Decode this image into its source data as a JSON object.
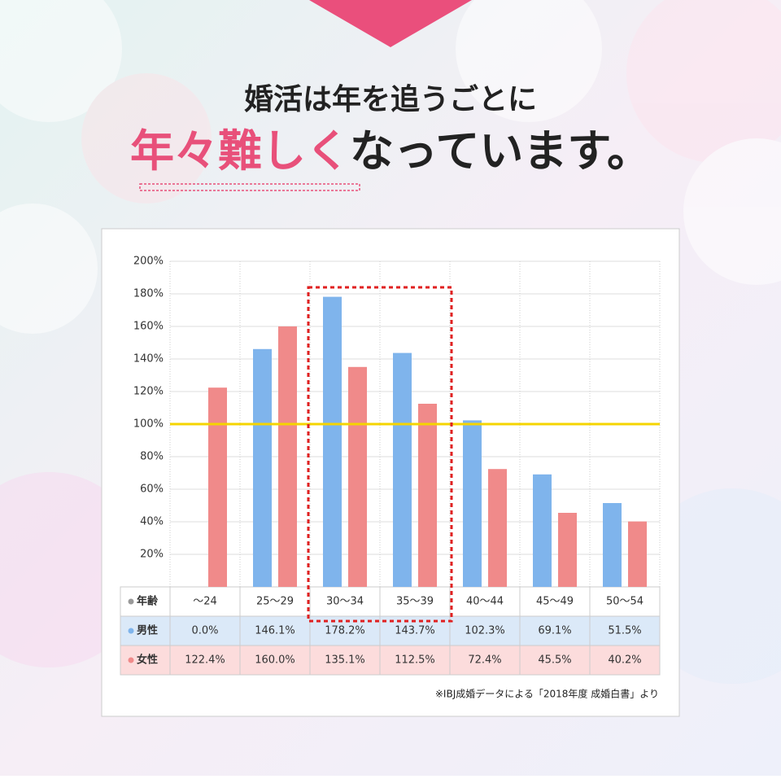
{
  "chart_data": {
    "type": "bar",
    "title": "婚活は年を追うごとに",
    "subtitle_emphasis": "年々難しく",
    "subtitle_rest": "なっています。",
    "category_label": "年齢",
    "categories": [
      "〜24",
      "25〜29",
      "30〜34",
      "35〜39",
      "40〜44",
      "45〜49",
      "50〜54"
    ],
    "series": [
      {
        "name": "男性",
        "color": "#7fb4ec",
        "row_color": "#dbe9f8",
        "values": [
          0.0,
          146.1,
          178.2,
          143.7,
          102.3,
          69.1,
          51.5
        ],
        "value_labels": [
          "0.0%",
          "146.1%",
          "178.2%",
          "143.7%",
          "102.3%",
          "69.1%",
          "51.5%"
        ]
      },
      {
        "name": "女性",
        "color": "#f08a8a",
        "row_color": "#fcdcdc",
        "values": [
          122.4,
          160.0,
          135.1,
          112.5,
          72.4,
          45.5,
          40.2
        ],
        "value_labels": [
          "122.4%",
          "160.0%",
          "135.1%",
          "112.5%",
          "72.4%",
          "45.5%",
          "40.2%"
        ]
      }
    ],
    "ylim": [
      0,
      200
    ],
    "yticks": [
      {
        "value": 20,
        "label": "20%"
      },
      {
        "value": 40,
        "label": "40%"
      },
      {
        "value": 60,
        "label": "60%"
      },
      {
        "value": 80,
        "label": "80%"
      },
      {
        "value": 100,
        "label": "100%"
      },
      {
        "value": 120,
        "label": "120%"
      },
      {
        "value": 140,
        "label": "140%"
      },
      {
        "value": 160,
        "label": "160%"
      },
      {
        "value": 180,
        "label": "180%"
      },
      {
        "value": 200,
        "label": "200%"
      }
    ],
    "reference_line": {
      "value": 100,
      "color": "#f5d400"
    },
    "grid": true,
    "source": "※IBJ成婚データによる「2018年度 成婚白書」より"
  }
}
